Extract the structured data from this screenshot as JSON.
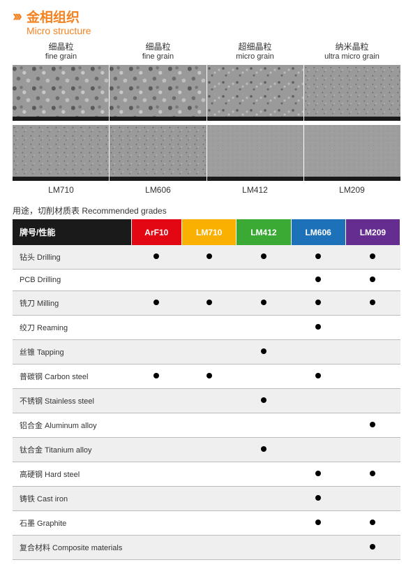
{
  "title": {
    "chevron_color": "#f58220",
    "cn": "金相组织",
    "cn_color": "#f58220",
    "en": "Micro structure",
    "en_color": "#f58220"
  },
  "grain_headers": [
    {
      "cn": "细晶粒",
      "en": "fine grain"
    },
    {
      "cn": "细晶粒",
      "en": "fine grain"
    },
    {
      "cn": "超细晶粒",
      "en": "micro grain"
    },
    {
      "cn": "纳米晶粒",
      "en": "ultra micro grain"
    }
  ],
  "bottom_labels": [
    "LM710",
    "LM606",
    "LM412",
    "LM209"
  ],
  "subtitle": "用途，切削材质表  Recommended grades",
  "table": {
    "header_bg_first": "#1a1a1a",
    "columns": [
      {
        "label": "牌号/性能",
        "bg": "#1a1a1a"
      },
      {
        "label": "ArF10",
        "bg": "#e30613"
      },
      {
        "label": "LM710",
        "bg": "#f9b000"
      },
      {
        "label": "LM412",
        "bg": "#3aaa35"
      },
      {
        "label": "LM606",
        "bg": "#1d71b8"
      },
      {
        "label": "LM209",
        "bg": "#662d91"
      }
    ],
    "rows": [
      {
        "label": "钻头  Drilling",
        "marks": [
          true,
          true,
          true,
          true,
          true
        ]
      },
      {
        "label": "PCB Drilling",
        "marks": [
          false,
          false,
          false,
          true,
          true
        ]
      },
      {
        "label": "铣刀  Milling",
        "marks": [
          true,
          true,
          true,
          true,
          true
        ]
      },
      {
        "label": "绞刀 Reaming",
        "marks": [
          false,
          false,
          false,
          true,
          false
        ]
      },
      {
        "label": "丝锥 Tapping",
        "marks": [
          false,
          false,
          true,
          false,
          false
        ]
      },
      {
        "label": "普碳钢 Carbon steel",
        "marks": [
          true,
          true,
          false,
          true,
          false
        ]
      },
      {
        "label": "不锈钢 Stainless steel",
        "marks": [
          false,
          false,
          true,
          false,
          false
        ]
      },
      {
        "label": "铝合金 Aluminum alloy",
        "marks": [
          false,
          false,
          false,
          false,
          true
        ]
      },
      {
        "label": "钛合金 Titanium alloy",
        "marks": [
          false,
          false,
          true,
          false,
          false
        ]
      },
      {
        "label": "高硬钢 Hard steel",
        "marks": [
          false,
          false,
          false,
          true,
          true
        ]
      },
      {
        "label": "铸铁 Cast iron",
        "marks": [
          false,
          false,
          false,
          true,
          false
        ]
      },
      {
        "label": "石墨  Graphite",
        "marks": [
          false,
          false,
          false,
          true,
          true
        ]
      },
      {
        "label": "复合材料 Composite materials",
        "marks": [
          false,
          false,
          false,
          false,
          true
        ]
      }
    ]
  }
}
